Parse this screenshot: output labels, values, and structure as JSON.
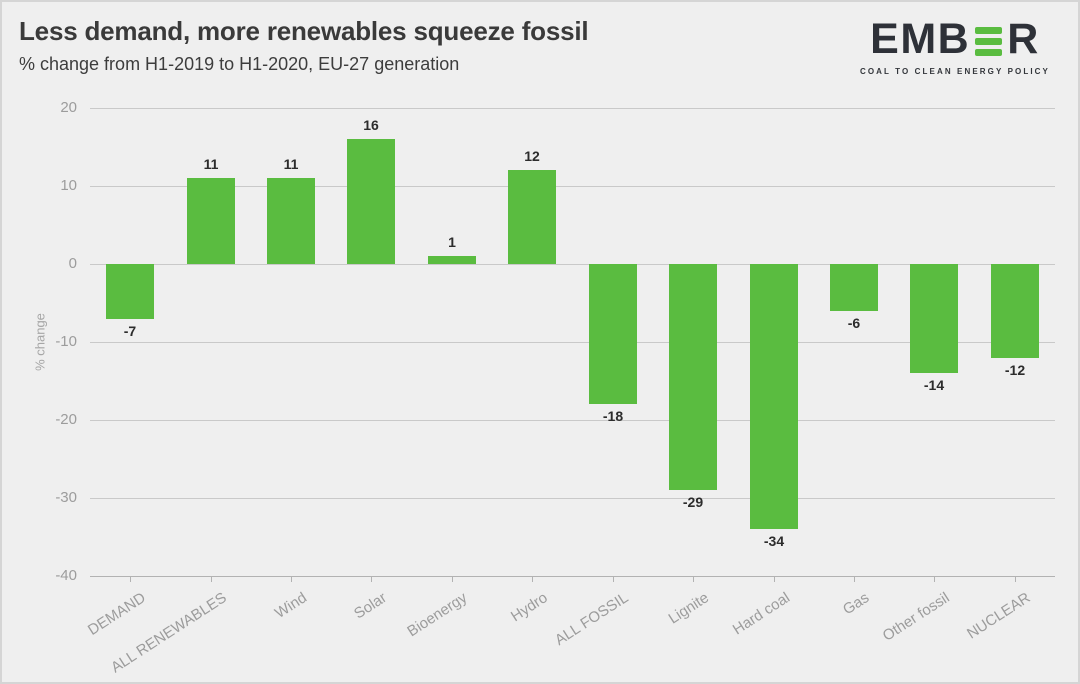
{
  "page": {
    "background": "#efefef",
    "border_color": "#d5d5d5"
  },
  "header": {
    "title": "Less demand, more renewables squeeze fossil",
    "subtitle": "% change from H1-2019 to H1-2020, EU-27 generation"
  },
  "logo": {
    "word_left": "EMB",
    "word_right": "R",
    "tagline": "COAL TO CLEAN ENERGY POLICY",
    "accent_color": "#5abc40",
    "text_color": "#2e3138"
  },
  "chart_data": {
    "type": "bar",
    "title": "Less demand, more renewables squeeze fossil",
    "subtitle": "% change from H1-2019 to H1-2020, EU-27 generation",
    "categories": [
      "DEMAND",
      "ALL RENEWABLES",
      "Wind",
      "Solar",
      "Bioenergy",
      "Hydro",
      "ALL FOSSIL",
      "Lignite",
      "Hard coal",
      "Gas",
      "Other fossil",
      "NUCLEAR"
    ],
    "values": [
      -7,
      11,
      11,
      16,
      1,
      12,
      -18,
      -29,
      -34,
      -6,
      -14,
      -12
    ],
    "xlabel": "",
    "ylabel": "% change",
    "ylim": [
      -40,
      20
    ],
    "yticks": [
      20,
      10,
      0,
      -10,
      -20,
      -30,
      -40
    ],
    "grid": true,
    "legend": "none",
    "bar_color": "#5abc40",
    "value_labels": true
  }
}
